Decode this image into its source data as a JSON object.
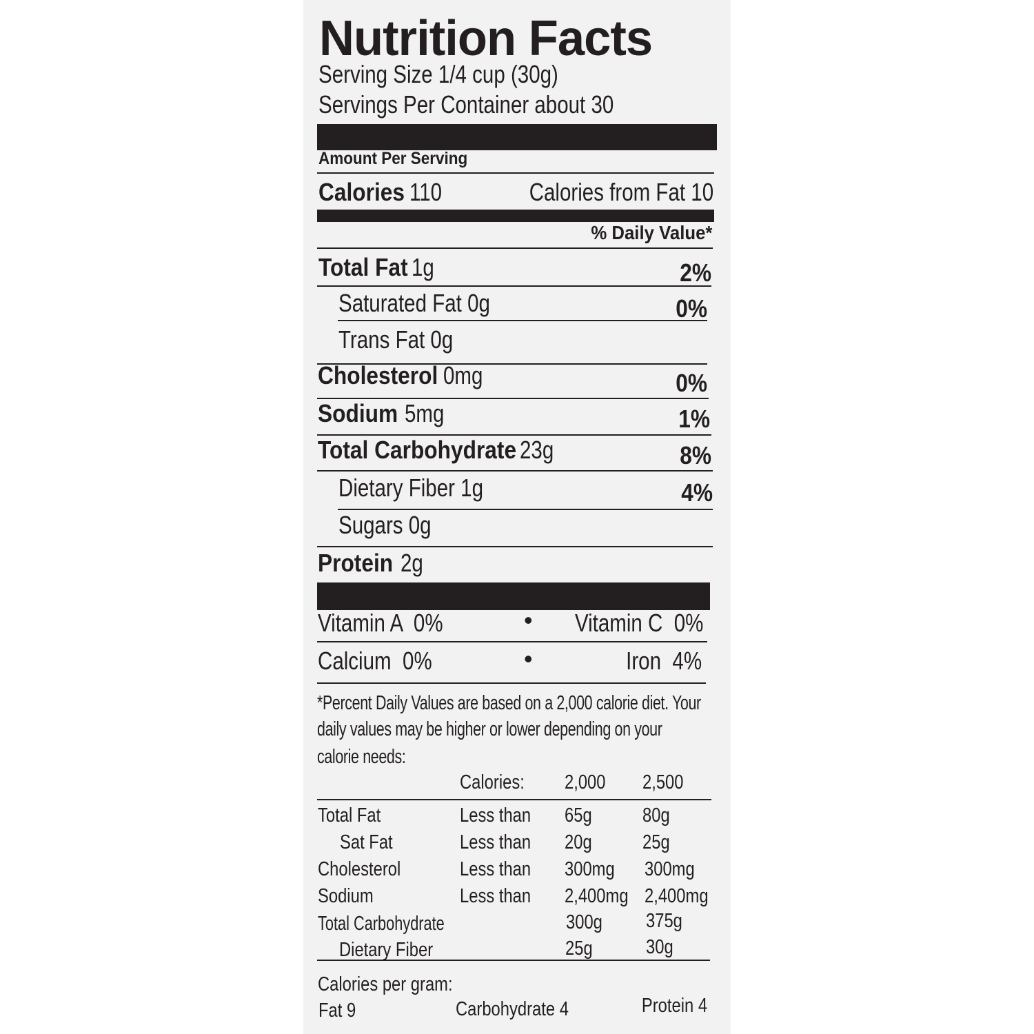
{
  "title": "Nutrition Facts",
  "serving_size": "Serving Size 1/4 cup (30g)",
  "servings_per_container": "Servings Per Container about 30",
  "amount_per_serving": "Amount Per Serving",
  "calories": {
    "label": "Calories",
    "value": "110",
    "from_fat": "Calories from Fat 10"
  },
  "daily_value_header": "% Daily Value*",
  "nutrients": [
    {
      "label": "Total Fat",
      "amount": "1g",
      "dv": "2%"
    },
    {
      "label": "Saturated Fat",
      "amount": "0g",
      "dv": "0%"
    },
    {
      "label": "Trans Fat",
      "amount": "0g",
      "dv": ""
    },
    {
      "label": "Cholesterol",
      "amount": "0mg",
      "dv": "0%"
    },
    {
      "label": "Sodium",
      "amount": "5mg",
      "dv": "1%"
    },
    {
      "label": "Total Carbohydrate",
      "amount": "23g",
      "dv": "8%"
    },
    {
      "label": "Dietary Fiber",
      "amount": "1g",
      "dv": "4%"
    },
    {
      "label": "Sugars",
      "amount": "0g",
      "dv": ""
    },
    {
      "label": "Protein",
      "amount": "2g",
      "dv": ""
    }
  ],
  "vitamins": [
    {
      "left": "Vitamin A  0%",
      "right": "Vitamin C  0%"
    },
    {
      "left": "Calcium  0%",
      "right": "Iron  4%"
    }
  ],
  "bullet": "•",
  "footnote": [
    "*Percent Daily Values are based on a 2,000 calorie diet. Your",
    "daily values may be higher or lower depending on your",
    "calorie needs:"
  ],
  "dv_table": {
    "header": [
      "Calories:",
      "2,000",
      "2,500"
    ],
    "rows": [
      [
        "Total Fat",
        "Less than",
        "65g",
        "80g"
      ],
      [
        "Sat Fat",
        "Less than",
        "20g",
        "25g"
      ],
      [
        "Cholesterol",
        "Less than",
        "300mg",
        "300mg"
      ],
      [
        "Sodium",
        "Less than",
        "2,400mg",
        "2,400mg"
      ],
      [
        "Total Carbohydrate",
        "",
        "300g",
        "375g"
      ],
      [
        "Dietary Fiber",
        "",
        "25g",
        "30g"
      ]
    ]
  },
  "calories_per_gram": {
    "label": "Calories per gram:",
    "fat": "Fat 9",
    "carbohydrate": "Carbohydrate 4",
    "protein": "Protein 4"
  }
}
